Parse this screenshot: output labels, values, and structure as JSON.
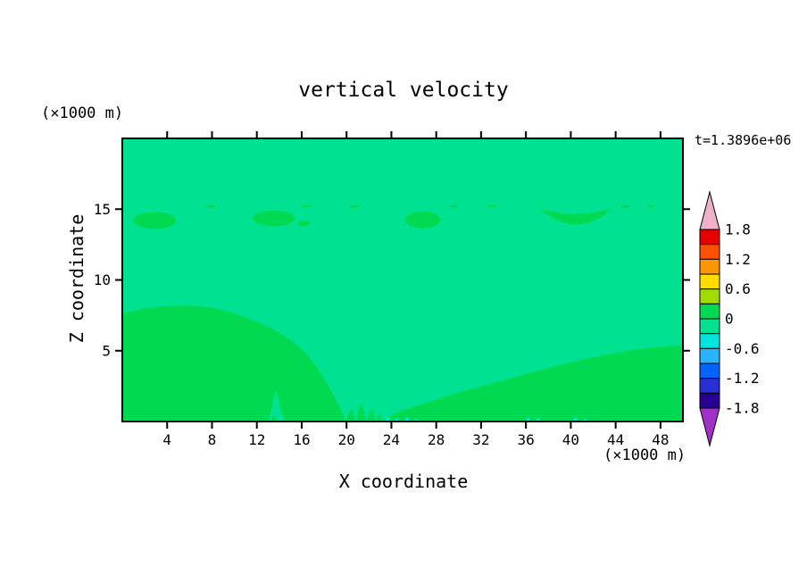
{
  "chart_data": {
    "type": "heatmap",
    "subtype": "filled-contour",
    "title": "vertical velocity",
    "xlabel": "X coordinate",
    "ylabel": "Z coordinate",
    "x_unit": "(×1000 m)",
    "y_unit": "(×1000 m)",
    "time_label": "t=1.3896e+06",
    "x_range": [
      0,
      50
    ],
    "y_range": [
      0,
      20
    ],
    "x_ticks": [
      4,
      8,
      12,
      16,
      20,
      24,
      28,
      32,
      36,
      40,
      44,
      48
    ],
    "y_ticks": [
      5,
      10,
      15
    ],
    "grid": false,
    "legend_position": "right-colorbar",
    "colorbar": {
      "labels": [
        "1.8",
        "1.2",
        "0.6",
        "0",
        "-0.6",
        "-1.2",
        "-1.8"
      ],
      "level_step": 0.3,
      "bands": [
        {
          "range": [
            1.5,
            1.8
          ],
          "color": "#e60000"
        },
        {
          "range": [
            1.2,
            1.5
          ],
          "color": "#ff5000"
        },
        {
          "range": [
            0.9,
            1.2
          ],
          "color": "#ff9600"
        },
        {
          "range": [
            0.6,
            0.9
          ],
          "color": "#ffdc00"
        },
        {
          "range": [
            0.3,
            0.6
          ],
          "color": "#a0dc00"
        },
        {
          "range": [
            0.0,
            0.3
          ],
          "color": "#00d950"
        },
        {
          "range": [
            -0.3,
            0.0
          ],
          "color": "#00e292"
        },
        {
          "range": [
            -0.6,
            -0.3
          ],
          "color": "#00e6de"
        },
        {
          "range": [
            -0.9,
            -0.6
          ],
          "color": "#28b4ff"
        },
        {
          "range": [
            -1.2,
            -0.9
          ],
          "color": "#0064ff"
        },
        {
          "range": [
            -1.5,
            -1.2
          ],
          "color": "#2830d2"
        },
        {
          "range": [
            -1.8,
            -1.5
          ],
          "color": "#280096"
        }
      ],
      "arrow_top_color": "#f0b0c8",
      "arrow_bottom_color": "#a030c8"
    },
    "field": {
      "description": "vertical velocity is near zero everywhere: background band -0.3..0, green patches band 0..0.3, tiny cyan surface specks band -0.6..-0.3",
      "background_color": "#00e292",
      "patch_color": "#00d950",
      "speck_color": "#00e6de",
      "regions": {
        "lower_left_polygon": [
          [
            0,
            7.55
          ],
          [
            2,
            7.9
          ],
          [
            4,
            8.05
          ],
          [
            6,
            8.1
          ],
          [
            8,
            7.95
          ],
          [
            10,
            7.55
          ],
          [
            12,
            6.95
          ],
          [
            13.5,
            6.4
          ],
          [
            15,
            5.65
          ],
          [
            16.2,
            4.85
          ],
          [
            17.2,
            3.85
          ],
          [
            18,
            2.85
          ],
          [
            18.8,
            1.7
          ],
          [
            19.4,
            0.8
          ],
          [
            19.8,
            0
          ],
          [
            14.6,
            0
          ],
          [
            14.1,
            1.3
          ],
          [
            13.7,
            2.6
          ],
          [
            13.3,
            1.3
          ],
          [
            12.9,
            0
          ],
          [
            0,
            0
          ]
        ],
        "lower_right_polygon": [
          [
            23.4,
            0
          ],
          [
            24.5,
            0.55
          ],
          [
            26,
            0.95
          ],
          [
            28,
            1.45
          ],
          [
            30,
            1.95
          ],
          [
            33,
            2.6
          ],
          [
            36,
            3.25
          ],
          [
            39,
            3.9
          ],
          [
            42,
            4.45
          ],
          [
            45,
            4.9
          ],
          [
            47.5,
            5.15
          ],
          [
            50,
            5.3
          ],
          [
            50,
            0
          ]
        ],
        "mid_blobs": [
          {
            "cx": 2.9,
            "cz": 14.2,
            "rx": 1.9,
            "rz": 0.6
          },
          {
            "cx": 13.5,
            "cz": 14.35,
            "rx": 1.9,
            "rz": 0.55
          },
          {
            "cx": 16.2,
            "cz": 14.0,
            "rx": 0.55,
            "rz": 0.2
          },
          {
            "cx": 26.8,
            "cz": 14.25,
            "rx": 1.55,
            "rz": 0.6
          }
        ],
        "crescent": {
          "p1": [
            37.2,
            15.05
          ],
          "p2": [
            43.7,
            15.05
          ],
          "c_out": [
            40.5,
            12.8
          ],
          "c_in": [
            40.5,
            14.3
          ]
        },
        "top_dashes": {
          "z": 15.2,
          "segments": [
            [
              7.4,
              8.3
            ],
            [
              16.0,
              16.8
            ],
            [
              20.3,
              21.1
            ],
            [
              29.3,
              29.9
            ],
            [
              32.6,
              33.4
            ],
            [
              44.4,
              45.2
            ],
            [
              46.9,
              47.5
            ]
          ]
        },
        "surface_bumps": [
          {
            "x": 13.5,
            "w": 0.5,
            "h": 0.4
          },
          {
            "x": 20.4,
            "w": 0.8,
            "h": 0.8
          },
          {
            "x": 21.3,
            "w": 0.8,
            "h": 1.2
          },
          {
            "x": 22.2,
            "w": 0.7,
            "h": 0.8
          },
          {
            "x": 22.9,
            "w": 0.5,
            "h": 0.5
          }
        ],
        "surface_specks": [
          {
            "x": 23.7,
            "w": 0.5,
            "h": 0.3
          },
          {
            "x": 24.5,
            "w": 0.4,
            "h": 0.25
          },
          {
            "x": 25.4,
            "w": 0.5,
            "h": 0.3
          },
          {
            "x": 26.2,
            "w": 0.4,
            "h": 0.2
          },
          {
            "x": 36.2,
            "w": 0.5,
            "h": 0.3
          },
          {
            "x": 37.1,
            "w": 0.4,
            "h": 0.25
          },
          {
            "x": 40.4,
            "w": 0.5,
            "h": 0.3
          },
          {
            "x": 41.3,
            "w": 0.4,
            "h": 0.22
          }
        ]
      }
    }
  }
}
